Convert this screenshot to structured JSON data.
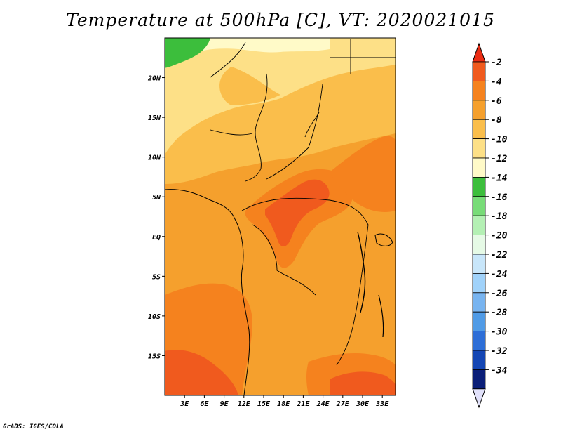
{
  "title": "Temperature at 500hPa [C], VT: 2020021015",
  "credit": "GrADS: IGES/COLA",
  "map": {
    "lon_range": [
      0,
      35
    ],
    "lat_range": [
      -20,
      25
    ],
    "lat_ticks": [
      {
        "value": 20,
        "label": "20N"
      },
      {
        "value": 15,
        "label": "15N"
      },
      {
        "value": 10,
        "label": "10N"
      },
      {
        "value": 5,
        "label": "5N"
      },
      {
        "value": 0,
        "label": "EQ"
      },
      {
        "value": -5,
        "label": "5S"
      },
      {
        "value": -10,
        "label": "10S"
      },
      {
        "value": -15,
        "label": "15S"
      }
    ],
    "lon_ticks": [
      {
        "value": 3,
        "label": "3E"
      },
      {
        "value": 6,
        "label": "6E"
      },
      {
        "value": 9,
        "label": "9E"
      },
      {
        "value": 12,
        "label": "12E"
      },
      {
        "value": 15,
        "label": "15E"
      },
      {
        "value": 18,
        "label": "18E"
      },
      {
        "value": 21,
        "label": "21E"
      },
      {
        "value": 24,
        "label": "24E"
      },
      {
        "value": 27,
        "label": "27E"
      },
      {
        "value": 30,
        "label": "30E"
      },
      {
        "value": 33,
        "label": "33E"
      }
    ]
  },
  "colorbar": [
    {
      "label": "-2",
      "color": "#f05a1e"
    },
    {
      "label": "-4",
      "color": "#f5821e"
    },
    {
      "label": "-6",
      "color": "#f5a02d"
    },
    {
      "label": "-8",
      "color": "#fabe4b"
    },
    {
      "label": "-10",
      "color": "#fde087"
    },
    {
      "label": "-12",
      "color": "#fffac8"
    },
    {
      "label": "-14",
      "color": "#3cbe3c"
    },
    {
      "label": "-16",
      "color": "#78dc78"
    },
    {
      "label": "-18",
      "color": "#b4f0b4"
    },
    {
      "label": "-20",
      "color": "#e6fae6"
    },
    {
      "label": "-22",
      "color": "#c8e6fa"
    },
    {
      "label": "-24",
      "color": "#a0d2fa"
    },
    {
      "label": "-26",
      "color": "#78b4f0"
    },
    {
      "label": "-28",
      "color": "#509be6"
    },
    {
      "label": "-30",
      "color": "#2d6ed7"
    },
    {
      "label": "-32",
      "color": "#1446b4"
    },
    {
      "label": "-34",
      "color": "#0a1e78"
    }
  ],
  "colorbar_ends": {
    "top": "#eb2d14",
    "bottom": "#e1e1fa"
  }
}
